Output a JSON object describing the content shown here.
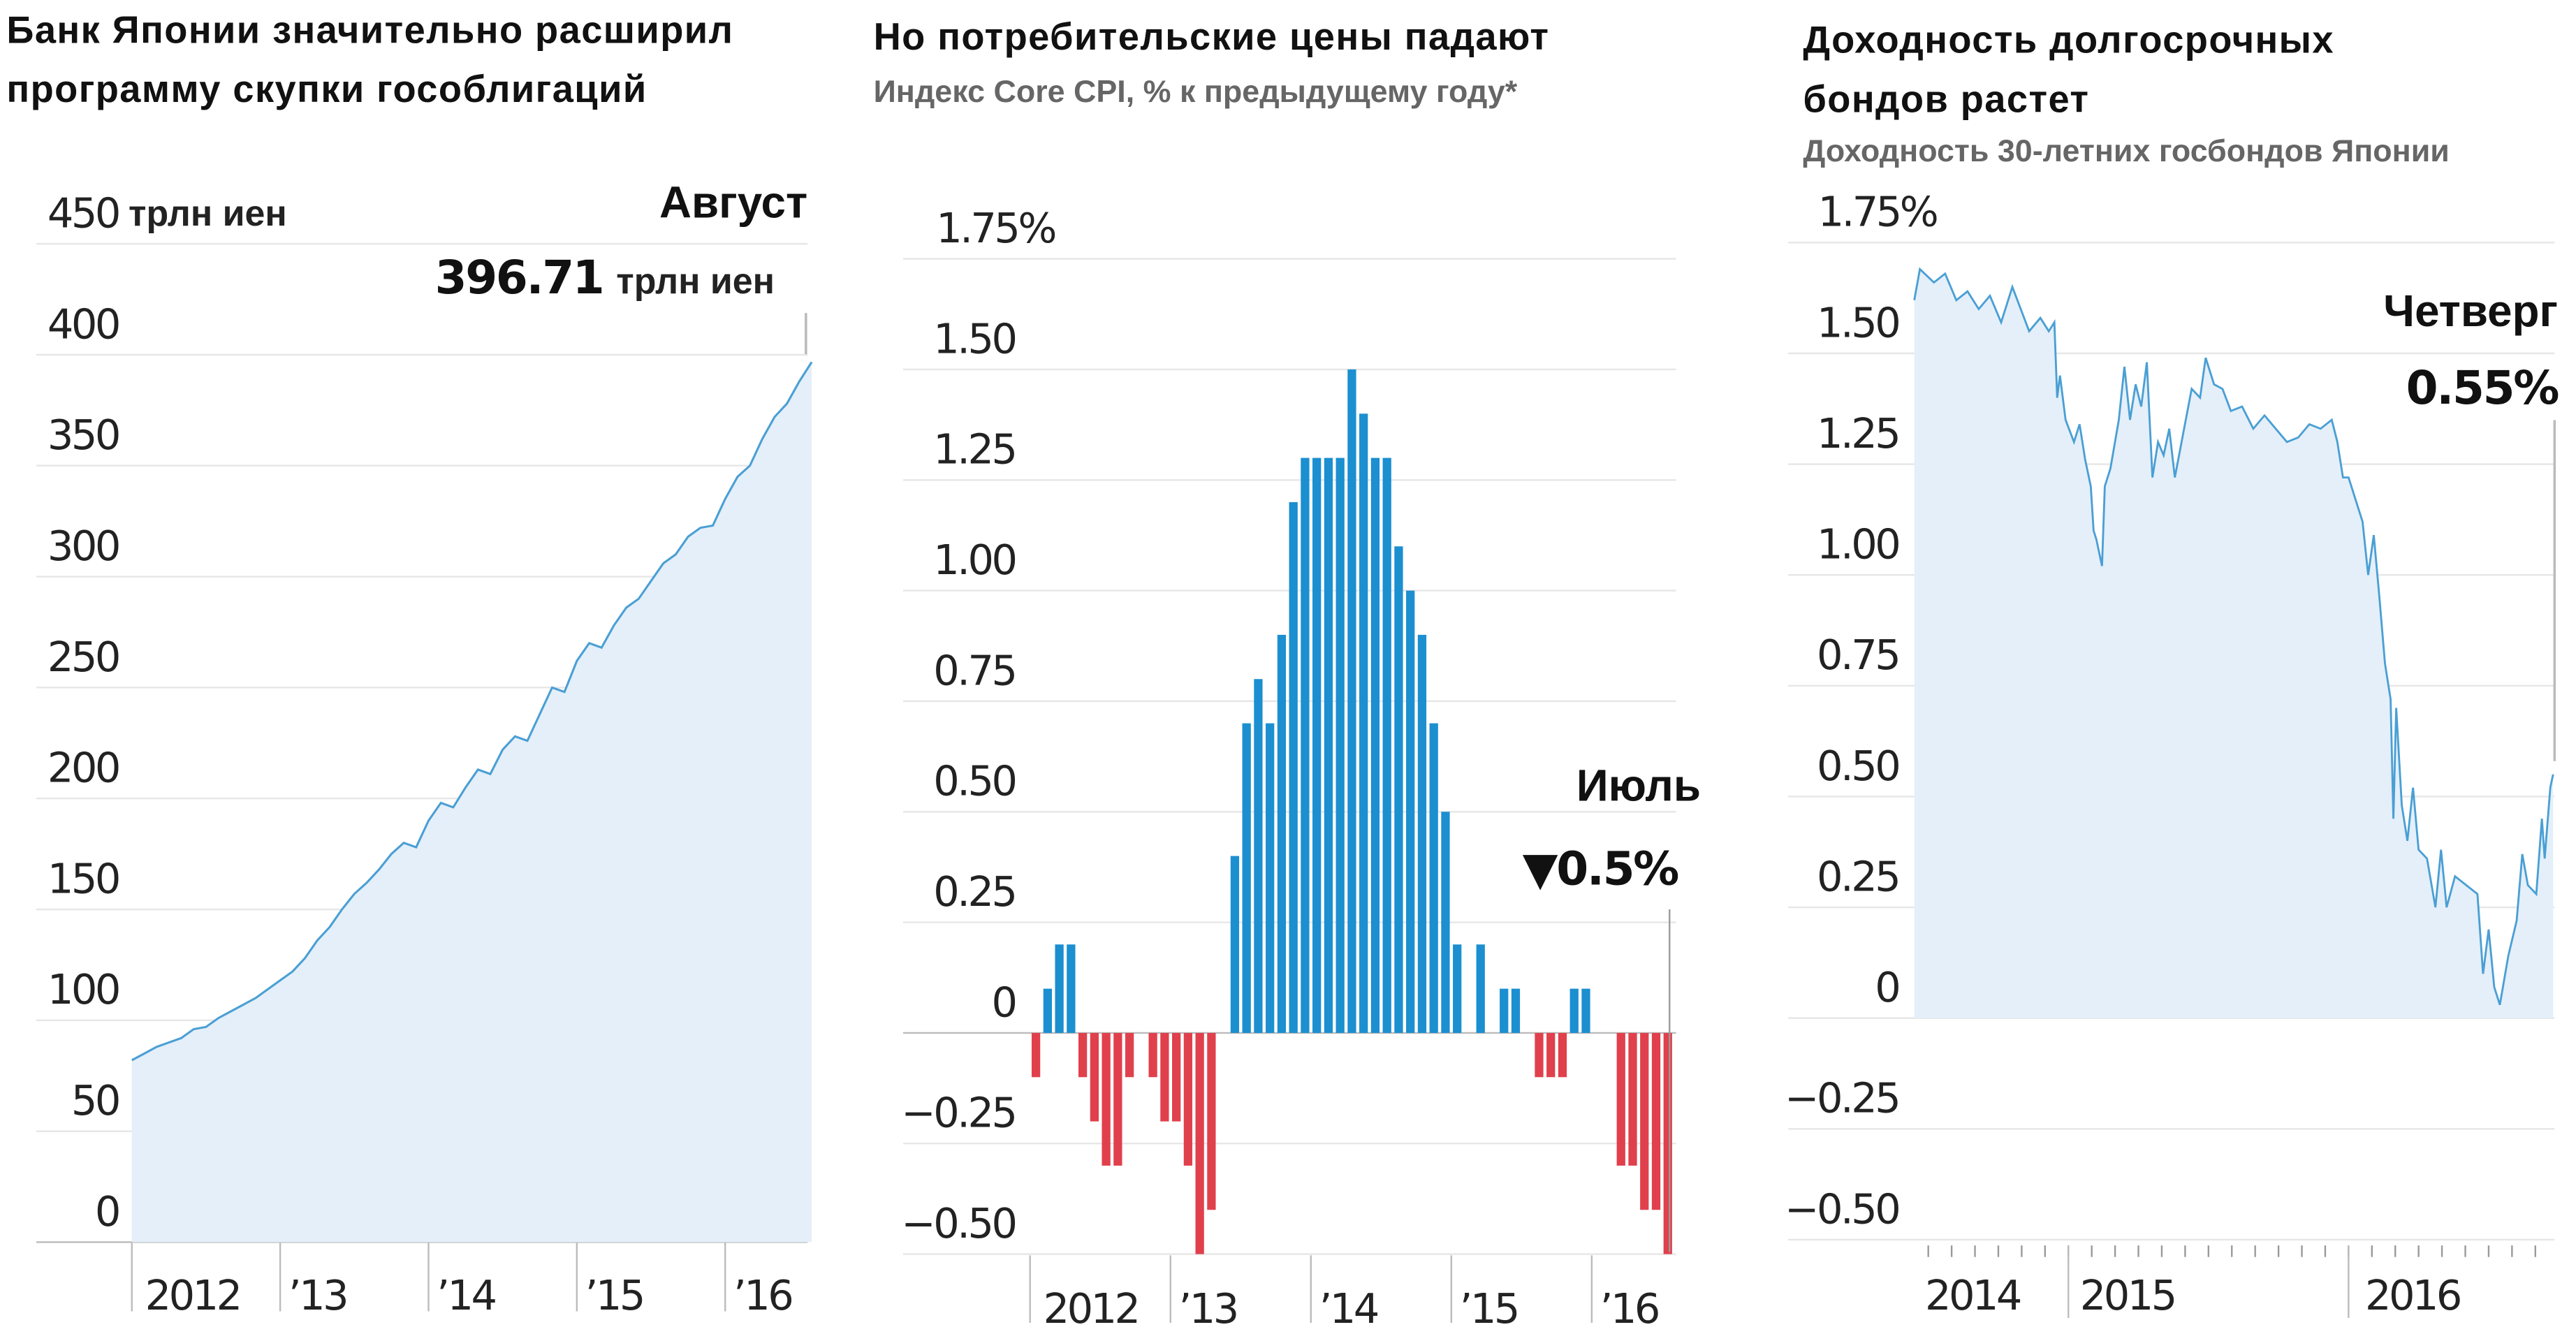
{
  "colors": {
    "area_fill": "#e4eff9",
    "line": "#4a9fd4",
    "bar_pos": "#1b8fd0",
    "bar_neg": "#e0404c",
    "grid": "#e6e6e6"
  },
  "chart_data": [
    {
      "type": "area",
      "title": "Банк Японии значительно расширил программу скупки гособлигаций",
      "unit_label": "трлн иен",
      "ylim": [
        0,
        450
      ],
      "y_ticks": [
        "0",
        "50",
        "100",
        "150",
        "200",
        "250",
        "300",
        "350",
        "400",
        "450"
      ],
      "x_ticks": [
        "2012",
        "’13",
        "’14",
        "’15",
        "’16"
      ],
      "start": "2012-01",
      "values": [
        82,
        85,
        88,
        90,
        92,
        96,
        97,
        101,
        104,
        107,
        110,
        114,
        118,
        122,
        128,
        136,
        142,
        150,
        157,
        162,
        168,
        175,
        180,
        178,
        190,
        198,
        196,
        205,
        213,
        211,
        222,
        228,
        226,
        238,
        250,
        248,
        262,
        270,
        268,
        278,
        286,
        290,
        298,
        306,
        310,
        318,
        322,
        323,
        335,
        345,
        350,
        362,
        372,
        378,
        388,
        396.71
      ],
      "annotation": {
        "label": "Август",
        "value": "396.71",
        "unit": "трлн иен"
      }
    },
    {
      "type": "bar",
      "title": "Но потребительские цены падают",
      "subtitle": "Индекс Core CPI, % к предыдущему году*",
      "ylim": [
        -0.55,
        1.75
      ],
      "y_ticks": [
        {
          "v": 1.75,
          "t": "1.75%"
        },
        {
          "v": 1.5,
          "t": "1.50"
        },
        {
          "v": 1.25,
          "t": "1.25"
        },
        {
          "v": 1.0,
          "t": "1.00"
        },
        {
          "v": 0.75,
          "t": "0.75"
        },
        {
          "v": 0.5,
          "t": "0.50"
        },
        {
          "v": 0.25,
          "t": "0.25"
        },
        {
          "v": 0,
          "t": "0"
        },
        {
          "v": -0.25,
          "t": "−0.25"
        },
        {
          "v": -0.5,
          "t": "−0.50"
        }
      ],
      "x_ticks": [
        "2012",
        "’13",
        "’14",
        "’15",
        "’16"
      ],
      "start": "2012-01",
      "values": [
        -0.1,
        0.1,
        0.2,
        0.2,
        -0.1,
        -0.2,
        -0.3,
        -0.3,
        -0.1,
        0,
        -0.1,
        -0.2,
        -0.2,
        -0.3,
        -0.5,
        -0.4,
        0,
        0.4,
        0.7,
        0.8,
        0.7,
        0.9,
        1.2,
        1.3,
        1.3,
        1.3,
        1.3,
        1.5,
        1.4,
        1.3,
        1.3,
        1.1,
        1.0,
        0.9,
        0.7,
        0.5,
        0.2,
        0,
        0.2,
        0,
        0.1,
        0.1,
        0,
        -0.1,
        -0.1,
        -0.1,
        0.1,
        0.1,
        0,
        0,
        -0.3,
        -0.3,
        -0.4,
        -0.4,
        -0.5
      ],
      "annotation": {
        "label": "Июль",
        "value": "▼0.5%"
      }
    },
    {
      "type": "line",
      "title_line1": "Доходность долгосрочных",
      "title_line2": "бондов растет",
      "subtitle": "Доходность 30-летних госбондов Японии",
      "ylim": [
        -0.5,
        1.75
      ],
      "y_ticks": [
        {
          "v": 1.75,
          "t": "1.75%"
        },
        {
          "v": 1.5,
          "t": "1.50"
        },
        {
          "v": 1.25,
          "t": "1.25"
        },
        {
          "v": 1.0,
          "t": "1.00"
        },
        {
          "v": 0.75,
          "t": "0.75"
        },
        {
          "v": 0.5,
          "t": "0.50"
        },
        {
          "v": 0.25,
          "t": "0.25"
        },
        {
          "v": 0,
          "t": "0"
        },
        {
          "v": -0.25,
          "t": "−0.25"
        },
        {
          "v": -0.5,
          "t": "−0.50"
        }
      ],
      "x_ticks": [
        "2014",
        "2015",
        "2016"
      ],
      "points": [
        [
          2014.45,
          1.62
        ],
        [
          2014.47,
          1.69
        ],
        [
          2014.52,
          1.66
        ],
        [
          2014.56,
          1.68
        ],
        [
          2014.6,
          1.62
        ],
        [
          2014.64,
          1.64
        ],
        [
          2014.68,
          1.6
        ],
        [
          2014.72,
          1.63
        ],
        [
          2014.76,
          1.57
        ],
        [
          2014.8,
          1.65
        ],
        [
          2014.83,
          1.6
        ],
        [
          2014.86,
          1.55
        ],
        [
          2014.9,
          1.58
        ],
        [
          2014.93,
          1.55
        ],
        [
          2014.95,
          1.57
        ],
        [
          2014.96,
          1.4
        ],
        [
          2014.97,
          1.45
        ],
        [
          2014.99,
          1.35
        ],
        [
          2015.02,
          1.3
        ],
        [
          2015.04,
          1.34
        ],
        [
          2015.06,
          1.26
        ],
        [
          2015.08,
          1.2
        ],
        [
          2015.09,
          1.1
        ],
        [
          2015.1,
          1.08
        ],
        [
          2015.12,
          1.02
        ],
        [
          2015.13,
          1.2
        ],
        [
          2015.15,
          1.24
        ],
        [
          2015.18,
          1.35
        ],
        [
          2015.2,
          1.47
        ],
        [
          2015.22,
          1.35
        ],
        [
          2015.24,
          1.43
        ],
        [
          2015.26,
          1.38
        ],
        [
          2015.28,
          1.48
        ],
        [
          2015.3,
          1.22
        ],
        [
          2015.32,
          1.3
        ],
        [
          2015.34,
          1.27
        ],
        [
          2015.36,
          1.33
        ],
        [
          2015.38,
          1.22
        ],
        [
          2015.41,
          1.32
        ],
        [
          2015.44,
          1.42
        ],
        [
          2015.47,
          1.4
        ],
        [
          2015.49,
          1.49
        ],
        [
          2015.52,
          1.43
        ],
        [
          2015.55,
          1.42
        ],
        [
          2015.58,
          1.37
        ],
        [
          2015.62,
          1.38
        ],
        [
          2015.66,
          1.33
        ],
        [
          2015.7,
          1.36
        ],
        [
          2015.74,
          1.33
        ],
        [
          2015.78,
          1.3
        ],
        [
          2015.82,
          1.31
        ],
        [
          2015.86,
          1.34
        ],
        [
          2015.9,
          1.33
        ],
        [
          2015.94,
          1.35
        ],
        [
          2015.96,
          1.3
        ],
        [
          2015.98,
          1.22
        ],
        [
          2016.0,
          1.22
        ],
        [
          2016.03,
          1.16
        ],
        [
          2016.05,
          1.12
        ],
        [
          2016.07,
          1.0
        ],
        [
          2016.09,
          1.09
        ],
        [
          2016.1,
          1.02
        ],
        [
          2016.11,
          0.95
        ],
        [
          2016.13,
          0.8
        ],
        [
          2016.15,
          0.72
        ],
        [
          2016.16,
          0.45
        ],
        [
          2016.17,
          0.7
        ],
        [
          2016.19,
          0.48
        ],
        [
          2016.21,
          0.4
        ],
        [
          2016.23,
          0.52
        ],
        [
          2016.25,
          0.38
        ],
        [
          2016.28,
          0.36
        ],
        [
          2016.31,
          0.25
        ],
        [
          2016.33,
          0.38
        ],
        [
          2016.35,
          0.25
        ],
        [
          2016.38,
          0.32
        ],
        [
          2016.42,
          0.3
        ],
        [
          2016.46,
          0.28
        ],
        [
          2016.48,
          0.1
        ],
        [
          2016.5,
          0.2
        ],
        [
          2016.52,
          0.07
        ],
        [
          2016.54,
          0.03
        ],
        [
          2016.57,
          0.14
        ],
        [
          2016.6,
          0.22
        ],
        [
          2016.62,
          0.37
        ],
        [
          2016.64,
          0.3
        ],
        [
          2016.67,
          0.28
        ],
        [
          2016.69,
          0.45
        ],
        [
          2016.7,
          0.36
        ],
        [
          2016.72,
          0.52
        ],
        [
          2016.73,
          0.55
        ]
      ],
      "annotation": {
        "label": "Четверг",
        "value": "0.55%"
      }
    }
  ]
}
